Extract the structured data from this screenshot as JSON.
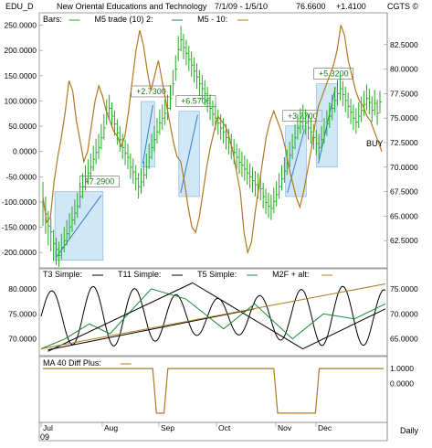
{
  "header": {
    "symbol": "EDU_D",
    "company": "New Oriental Educations and Technology",
    "range": "7/1/09 - 1/5/10",
    "last": "76.6600",
    "change": "+1.4100",
    "brand": "CGTS ©"
  },
  "footer": {
    "period": "Daily",
    "year": "09"
  },
  "colors": {
    "bars": "#22aa22",
    "m5": "#b07820",
    "boxes": "#a8d4f0",
    "trend": "#3a7ad0",
    "t3": "#000000",
    "t11": "#000000",
    "t5": "#1b8a3a",
    "m2f": "#b07820",
    "ma40": "#b07820"
  },
  "chart_data": [
    {
      "type": "line",
      "panel": "price",
      "legend": [
        "Bars:",
        "M5 trade (10) 2:",
        "M5 - 10:"
      ],
      "x_months": [
        "Jul",
        "Aug",
        "Sep",
        "Oct",
        "Nov",
        "Dec"
      ],
      "left_axis": {
        "ticks": [
          "250.0000",
          "200.0000",
          "150.0000",
          "100.0000",
          "50.0000",
          "0.0000",
          "-50.0000",
          "-100.0000",
          "-150.0000",
          "-200.0000"
        ],
        "ylim": [
          -225,
          260
        ]
      },
      "right_axis": {
        "ticks": [
          "82.5000",
          "80.0000",
          "77.5000",
          "75.0000",
          "72.5000",
          "70.0000",
          "67.5000",
          "65.0000",
          "62.5000"
        ],
        "ylim": [
          60,
          85
        ]
      },
      "price_bars": {
        "dates_index": [
          0,
          1,
          2,
          3,
          4,
          5,
          6,
          7,
          8,
          9,
          10,
          11,
          12,
          13,
          14,
          15,
          16,
          17,
          18,
          19,
          20,
          21,
          22,
          23,
          24,
          25,
          26,
          27,
          28,
          29,
          30,
          31,
          32,
          33,
          34,
          35,
          36,
          37,
          38,
          39,
          40,
          41,
          42,
          43,
          44,
          45,
          46,
          47,
          48,
          49,
          50,
          51,
          52,
          53,
          54,
          55,
          56,
          57,
          58,
          59,
          60,
          61,
          62,
          63,
          64,
          65,
          66,
          67,
          68,
          69,
          70,
          71,
          72,
          73,
          74,
          75,
          76,
          77,
          78,
          79,
          80,
          81,
          82,
          83,
          84,
          85,
          86,
          87,
          88,
          89,
          90,
          91,
          92,
          93,
          94,
          95,
          96,
          97,
          98,
          99,
          100,
          101,
          102,
          103,
          104,
          105,
          106,
          107,
          108,
          109,
          110,
          111,
          112,
          113,
          114,
          115,
          116,
          117,
          118,
          119,
          120,
          121,
          122,
          123,
          124,
          125,
          126,
          127
        ],
        "close": [
          66.0,
          65.2,
          64.0,
          63.4,
          62.2,
          61.6,
          61.0,
          61.8,
          62.5,
          63.2,
          63.9,
          64.6,
          65.3,
          66.0,
          67.0,
          68.0,
          68.8,
          69.4,
          70.0,
          70.8,
          71.5,
          72.0,
          73.0,
          74.0,
          75.5,
          76.0,
          75.2,
          74.4,
          73.5,
          72.8,
          72.0,
          71.4,
          71.0,
          70.0,
          69.5,
          68.8,
          68.0,
          68.5,
          69.2,
          70.0,
          71.0,
          72.0,
          72.8,
          73.6,
          74.5,
          75.0,
          75.5,
          76.0,
          77.0,
          78.5,
          80.0,
          82.0,
          83.0,
          82.2,
          81.6,
          81.0,
          80.4,
          79.8,
          79.2,
          78.5,
          78.0,
          77.5,
          76.8,
          76.0,
          75.4,
          75.0,
          74.5,
          74.0,
          73.6,
          73.0,
          72.5,
          72.0,
          71.5,
          71.0,
          70.5,
          70.2,
          69.8,
          69.4,
          69.0,
          68.6,
          68.2,
          68.0,
          67.8,
          67.0,
          66.4,
          66.0,
          65.8,
          66.5,
          67.2,
          68.0,
          68.8,
          69.6,
          70.4,
          71.2,
          72.0,
          73.0,
          74.0,
          74.6,
          75.0,
          74.5,
          74.0,
          73.6,
          73.0,
          72.4,
          72.0,
          72.8,
          73.6,
          74.4,
          75.2,
          76.0,
          76.8,
          77.5,
          78.0,
          77.4,
          76.8,
          76.2,
          75.6,
          75.0,
          74.6,
          75.2,
          75.8,
          76.4,
          77.0,
          76.6,
          75.8,
          76.5,
          75.5,
          76.66
        ],
        "high": [
          68.5,
          67.0,
          65.5,
          64.8,
          63.6,
          62.8,
          62.4,
          63.2,
          63.9,
          64.6,
          65.3,
          66.0,
          66.7,
          67.4,
          68.4,
          69.4,
          70.2,
          70.8,
          71.4,
          72.2,
          72.9,
          73.4,
          74.4,
          75.4,
          76.9,
          77.4,
          76.6,
          75.8,
          74.9,
          74.2,
          73.4,
          72.8,
          72.4,
          71.4,
          70.9,
          70.2,
          69.4,
          69.9,
          70.6,
          71.4,
          72.4,
          73.4,
          74.2,
          75.0,
          75.9,
          76.4,
          76.9,
          77.4,
          78.4,
          79.9,
          81.4,
          83.4,
          84.4,
          83.6,
          83.0,
          82.4,
          81.8,
          81.2,
          80.6,
          79.9,
          79.4,
          78.9,
          78.2,
          77.4,
          76.8,
          76.4,
          75.9,
          75.4,
          75.0,
          74.4,
          73.9,
          73.4,
          72.9,
          72.4,
          71.9,
          71.6,
          71.2,
          70.8,
          70.4,
          70.0,
          69.6,
          69.4,
          69.2,
          68.4,
          67.8,
          67.4,
          67.2,
          67.9,
          68.6,
          69.4,
          70.2,
          71.0,
          71.8,
          72.6,
          73.4,
          74.4,
          75.4,
          76.0,
          76.4,
          75.9,
          75.4,
          75.0,
          74.4,
          73.8,
          73.4,
          74.2,
          75.0,
          75.8,
          76.6,
          77.4,
          78.2,
          78.9,
          79.4,
          78.8,
          78.2,
          77.6,
          77.0,
          76.4,
          76.0,
          76.6,
          77.2,
          77.8,
          78.4,
          78.0,
          77.2,
          77.9,
          76.9,
          77.8
        ],
        "low": [
          64.0,
          63.2,
          62.0,
          61.4,
          60.4,
          60.0,
          59.8,
          60.6,
          61.3,
          62.0,
          62.7,
          63.4,
          64.1,
          64.8,
          65.8,
          66.8,
          67.6,
          68.2,
          68.8,
          69.6,
          70.3,
          70.8,
          71.8,
          72.8,
          74.3,
          74.8,
          74.0,
          73.2,
          72.3,
          71.6,
          70.8,
          70.2,
          69.8,
          68.8,
          68.3,
          67.6,
          66.8,
          67.3,
          68.0,
          68.8,
          69.8,
          70.8,
          71.6,
          72.4,
          73.3,
          73.8,
          74.3,
          74.8,
          75.8,
          77.3,
          78.8,
          80.8,
          81.8,
          81.0,
          80.4,
          79.8,
          79.2,
          78.6,
          78.0,
          77.3,
          76.8,
          76.3,
          75.6,
          74.8,
          74.2,
          73.8,
          73.3,
          72.8,
          72.4,
          71.8,
          71.3,
          70.8,
          70.3,
          69.8,
          69.3,
          69.0,
          68.6,
          68.2,
          67.8,
          67.4,
          67.0,
          66.8,
          66.6,
          65.8,
          65.2,
          64.8,
          64.6,
          65.3,
          66.0,
          66.8,
          67.6,
          68.4,
          69.2,
          70.0,
          70.8,
          71.8,
          72.8,
          73.4,
          73.8,
          73.3,
          72.8,
          72.4,
          71.8,
          71.2,
          70.8,
          71.6,
          72.4,
          73.2,
          74.0,
          74.8,
          75.6,
          76.3,
          76.8,
          76.2,
          75.6,
          75.0,
          74.4,
          73.8,
          73.4,
          74.0,
          74.6,
          75.2,
          75.8,
          75.4,
          74.6,
          75.3,
          74.3,
          75.5
        ]
      },
      "m5_line": [
        -90,
        -140,
        -130,
        -60,
        -10,
        30,
        80,
        140,
        120,
        60,
        20,
        -20,
        0,
        50,
        100,
        130,
        110,
        80,
        60,
        40,
        30,
        10,
        30,
        80,
        140,
        200,
        240,
        210,
        160,
        120,
        150,
        180,
        140,
        100,
        60,
        20,
        -10,
        -20,
        -60,
        -110,
        -150,
        -160,
        -130,
        -80,
        -30,
        10,
        40,
        70,
        60,
        50,
        30,
        0,
        -40,
        -80,
        -160,
        -200,
        -180,
        -120,
        -70,
        -20,
        30,
        60,
        80,
        60,
        40,
        10,
        -30,
        -60,
        -90,
        -110,
        -80,
        -40,
        0,
        50,
        90,
        110,
        130,
        150,
        170,
        200,
        250,
        230,
        180,
        150,
        120,
        100,
        90,
        70,
        60,
        40,
        20,
        0
      ],
      "boxes": [
        {
          "label": "+7.2900",
          "x0": 0.04,
          "x1": 0.18,
          "y_low": 60.5,
          "y_high": 67.5
        },
        {
          "label": "+2.7300",
          "x0": 0.29,
          "x1": 0.33,
          "y_low": 70.0,
          "y_high": 76.7
        },
        {
          "label": "+6.5700",
          "x0": 0.4,
          "x1": 0.46,
          "y_low": 67.0,
          "y_high": 75.7
        },
        {
          "label": "+3.7700",
          "x0": 0.71,
          "x1": 0.77,
          "y_low": 67.0,
          "y_high": 74.2
        },
        {
          "label": "+5.3200",
          "x0": 0.8,
          "x1": 0.86,
          "y_low": 70.0,
          "y_high": 78.5
        }
      ],
      "annotations": [
        "BUY"
      ]
    },
    {
      "type": "line",
      "panel": "oscillator",
      "legend": [
        "T3 Simple:",
        "T11 Simple:",
        "T5 Simple:",
        "M2F + alt:"
      ],
      "left_axis": {
        "ticks": [
          "80.0000",
          "75.0000",
          "70.0000"
        ],
        "ylim": [
          67,
          82
        ]
      },
      "right_axis": {
        "ticks": [
          "75.0000",
          "70.0000",
          "65.0000"
        ],
        "ylim": [
          62,
          77
        ]
      }
    },
    {
      "type": "line",
      "panel": "ma40",
      "legend": [
        "MA 40 Diff Plus:"
      ],
      "right_axis": {
        "ticks": [
          "1.0000",
          "0.0000"
        ],
        "ylim": [
          -2.5,
          1.5
        ]
      },
      "values": [
        1,
        1,
        1,
        1,
        1,
        1,
        1,
        1,
        1,
        1,
        1,
        1,
        1,
        1,
        1,
        1,
        1,
        1,
        1,
        1,
        1,
        1,
        1,
        1,
        1,
        1,
        1,
        1,
        1,
        1,
        -2,
        -2,
        -2,
        1,
        1,
        1,
        1,
        1,
        1,
        1,
        1,
        1,
        1,
        1,
        1,
        1,
        1,
        1,
        1,
        1,
        1,
        1,
        1,
        1,
        1,
        1,
        1,
        1,
        1,
        1,
        1,
        1,
        -2,
        -2,
        -2,
        -2,
        -2,
        -2,
        -2,
        -2,
        -2,
        -2,
        -2,
        1,
        1,
        1,
        1,
        1,
        1,
        1,
        1,
        1,
        1,
        1,
        1,
        1,
        1,
        1,
        1,
        1,
        1
      ]
    }
  ]
}
